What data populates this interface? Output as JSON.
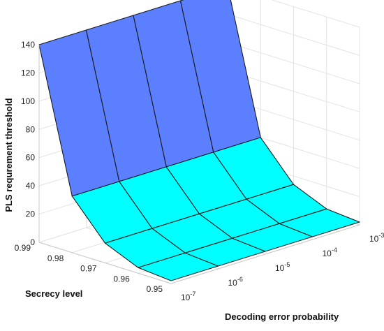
{
  "chart_data": {
    "type": "surface",
    "xlabel": "Decoding error probability",
    "ylabel": "Secrecy level",
    "zlabel": "PLS requrement threshold",
    "x_ticks": [
      {
        "base": "10",
        "exp": "-7"
      },
      {
        "base": "10",
        "exp": "-6"
      },
      {
        "base": "10",
        "exp": "-5"
      },
      {
        "base": "10",
        "exp": "-4"
      },
      {
        "base": "10",
        "exp": "-3"
      }
    ],
    "y_ticks": [
      "0.95",
      "0.96",
      "0.97",
      "0.98",
      "0.99"
    ],
    "z_ticks": [
      "0",
      "20",
      "40",
      "60",
      "80",
      "100",
      "120",
      "140"
    ],
    "x_values": [
      1e-07,
      1e-06,
      1e-05,
      0.0001,
      0.001
    ],
    "y_values": [
      0.95,
      0.96,
      0.97,
      0.98,
      0.99
    ],
    "zlim": [
      0,
      140
    ],
    "z_values": [
      [
        2,
        2,
        2,
        2,
        2
      ],
      [
        4,
        4,
        4,
        4,
        4
      ],
      [
        14,
        14,
        14,
        14,
        14
      ],
      [
        40,
        40,
        40,
        40,
        40
      ],
      [
        140,
        140,
        140,
        140,
        140
      ]
    ],
    "colormap": [
      "#00ffff",
      "#3aaef5",
      "#5b7fff"
    ],
    "grid": true
  }
}
